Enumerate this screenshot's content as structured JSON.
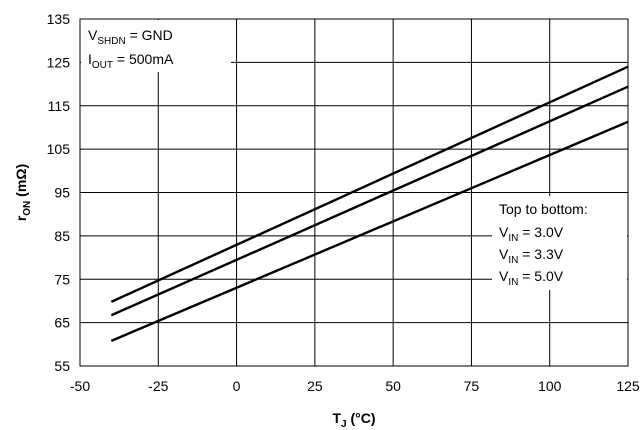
{
  "chart_data": {
    "type": "line",
    "xlabel": {
      "main": "T",
      "sub": "J",
      "rest": " (°C)"
    },
    "ylabel": {
      "main": "r",
      "sub": "ON",
      "rest": " (mΩ)"
    },
    "xlim": [
      -50,
      125
    ],
    "ylim": [
      55,
      135
    ],
    "x_ticks": [
      -50,
      -25,
      0,
      25,
      50,
      75,
      100,
      125
    ],
    "y_ticks": [
      55,
      65,
      75,
      85,
      95,
      105,
      115,
      125,
      135
    ],
    "grid": true,
    "conditions": [
      {
        "main": "V",
        "sub": "SHDN",
        "rest": " = GND"
      },
      {
        "main": "I",
        "sub": "OUT",
        "rest": " = 500mA"
      }
    ],
    "legend": {
      "title": "Top to bottom:",
      "placement": "right",
      "entries": [
        {
          "main": "V",
          "sub": "IN",
          "rest": " = 3.0V"
        },
        {
          "main": "V",
          "sub": "IN",
          "rest": " = 3.3V"
        },
        {
          "main": "V",
          "sub": "IN",
          "rest": " = 5.0V"
        }
      ]
    },
    "series": [
      {
        "x": [
          -40,
          125
        ],
        "y": [
          69.8,
          124.0
        ]
      },
      {
        "x": [
          -40,
          125
        ],
        "y": [
          66.7,
          119.4
        ]
      },
      {
        "x": [
          -40,
          125
        ],
        "y": [
          60.8,
          111.3
        ]
      }
    ]
  }
}
